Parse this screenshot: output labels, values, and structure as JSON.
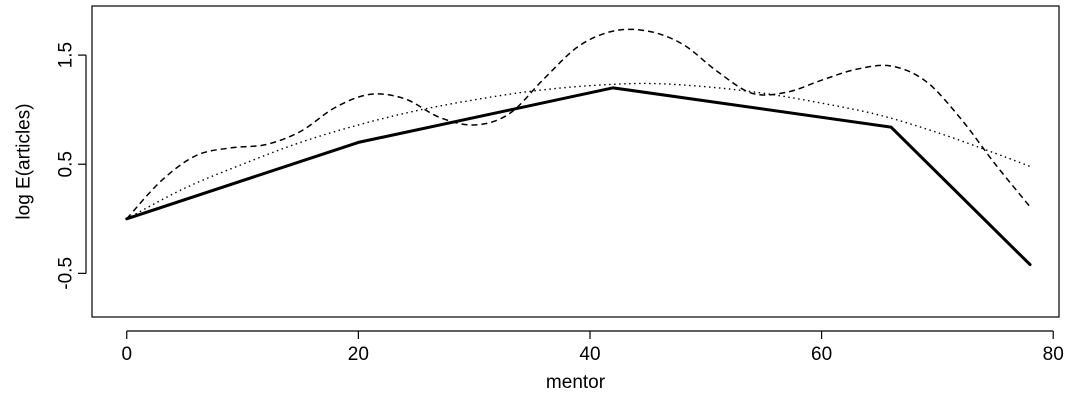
{
  "chart_data": {
    "type": "line",
    "title": "",
    "xlabel": "mentor",
    "ylabel": "log E(articles)",
    "xlim": [
      -3,
      80.5
    ],
    "ylim": [
      -0.9,
      1.95
    ],
    "x_ticks": [
      0,
      20,
      40,
      60,
      80
    ],
    "x_tick_labels": [
      "0",
      "20",
      "40",
      "60",
      "80"
    ],
    "y_ticks": [
      -0.5,
      0.5,
      1.5
    ],
    "y_tick_labels": [
      "-0.5",
      "0.5",
      "1.5"
    ],
    "grid": false,
    "legend": "none",
    "series": [
      {
        "style": "solid",
        "x": [
          0,
          20,
          42,
          66,
          78
        ],
        "y": [
          0.0,
          0.7,
          1.2,
          0.84,
          -0.42
        ]
      },
      {
        "style": "dashed",
        "x": [
          0,
          3,
          6,
          9,
          12,
          15,
          18,
          21,
          24,
          27,
          30,
          33,
          36,
          39,
          42,
          45,
          48,
          51,
          54,
          57,
          60,
          63,
          66,
          69,
          72,
          75,
          78
        ],
        "y": [
          0.0,
          0.35,
          0.58,
          0.65,
          0.68,
          0.8,
          1.02,
          1.14,
          1.1,
          0.93,
          0.86,
          0.96,
          1.28,
          1.58,
          1.72,
          1.72,
          1.6,
          1.35,
          1.15,
          1.16,
          1.27,
          1.37,
          1.4,
          1.26,
          0.92,
          0.5,
          0.11
        ]
      },
      {
        "style": "dotted",
        "x": [
          0,
          5,
          10,
          15,
          20,
          25,
          30,
          35,
          40,
          45,
          50,
          55,
          60,
          65,
          70,
          75,
          78
        ],
        "y": [
          0.0,
          0.28,
          0.5,
          0.7,
          0.86,
          0.99,
          1.09,
          1.17,
          1.22,
          1.24,
          1.21,
          1.15,
          1.06,
          0.95,
          0.79,
          0.6,
          0.48
        ]
      }
    ]
  }
}
